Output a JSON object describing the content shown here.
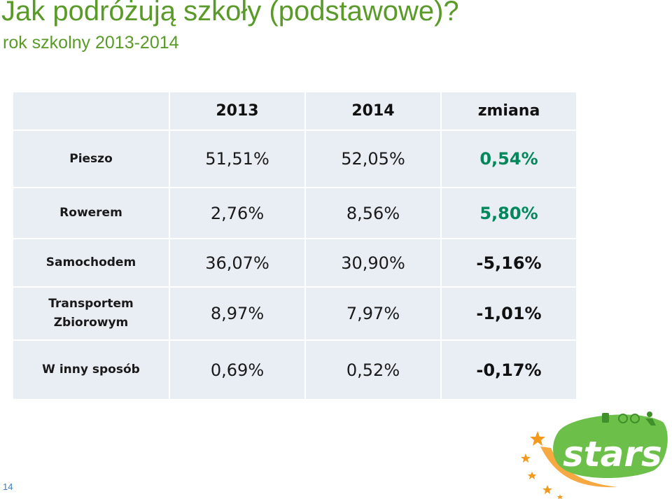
{
  "slide": {
    "title": "Jak podróżują szkoły (podstawowe)?",
    "subtitle": "rok szkolny 2013-2014",
    "page_number": "14"
  },
  "table": {
    "columns": [
      "",
      "2013",
      "2014",
      "zmiana"
    ],
    "rows": [
      {
        "label": "Pieszo",
        "y2013": "51,51%",
        "y2014": "52,05%",
        "change": "0,54%"
      },
      {
        "label": "Rowerem",
        "y2013": "2,76%",
        "y2014": "8,56%",
        "change": "5,80%"
      },
      {
        "label": "Samochodem",
        "y2013": "36,07%",
        "y2014": "30,90%",
        "change": "-5,16%"
      },
      {
        "label": "Transportem Zbiorowym",
        "y2013": "8,97%",
        "y2014": "7,97%",
        "change": "-1,01%"
      },
      {
        "label": "W inny sposób",
        "y2013": "0,69%",
        "y2014": "0,52%",
        "change": "-0,17%"
      }
    ]
  },
  "logo": {
    "text": "stars",
    "colors": {
      "green": "#6cc04a",
      "orange": "#f39a1e",
      "dark_green": "#3f8f2a"
    }
  },
  "colors": {
    "title": "#5a9a28",
    "positive_change": "#00875a",
    "cell_background": "#e9edf4"
  }
}
